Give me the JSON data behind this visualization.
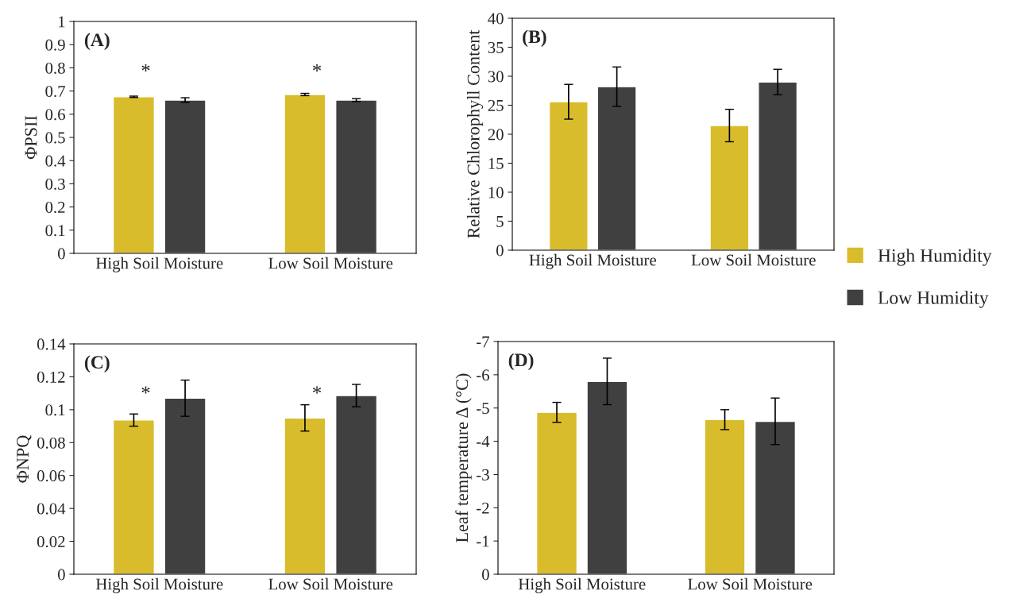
{
  "chart_data": [
    {
      "type": "bar",
      "title": "(A)",
      "ylabel": "ΦPSII",
      "categories": [
        "High Soil Moisture",
        "Low Soil Moisture"
      ],
      "ylim": [
        0,
        1
      ],
      "yticks": [
        0,
        0.1,
        0.2,
        0.3,
        0.4,
        0.5,
        0.6,
        0.7,
        0.8,
        0.9,
        1
      ],
      "grid": false,
      "legend": false,
      "series": [
        {
          "color": "#d9bc2b",
          "values": [
            0.675,
            0.685
          ],
          "errors": [
            0.003,
            0.005
          ]
        },
        {
          "color": "#404040",
          "values": [
            0.661,
            0.661
          ],
          "errors": [
            0.01,
            0.006
          ]
        }
      ],
      "annotations": [
        "*",
        "*"
      ]
    },
    {
      "type": "bar",
      "title": "(B)",
      "ylabel": "Relative Chlorophyll Content",
      "categories": [
        "High Soil Moisture",
        "Low Soil Moisture"
      ],
      "ylim": [
        0,
        40
      ],
      "yticks": [
        0,
        5,
        10,
        15,
        20,
        25,
        30,
        35,
        40
      ],
      "grid": false,
      "legend": "right",
      "series": [
        {
          "name": "High Humidity",
          "color": "#d9bc2b",
          "values": [
            25.6,
            21.5
          ],
          "errors": [
            3,
            2.8
          ]
        },
        {
          "name": "Low Humidity",
          "color": "#404040",
          "values": [
            28.2,
            29
          ],
          "errors": [
            3.4,
            2.2
          ]
        }
      ]
    },
    {
      "type": "bar",
      "title": "(C)",
      "ylabel": "ΦNPQ",
      "categories": [
        "High Soil Moisture",
        "Low Soil Moisture"
      ],
      "ylim": [
        0,
        0.14
      ],
      "yticks": [
        0,
        0.02,
        0.04,
        0.06,
        0.08,
        0.1,
        0.12,
        0.14
      ],
      "grid": false,
      "legend": false,
      "series": [
        {
          "color": "#d9bc2b",
          "values": [
            0.0937,
            0.095
          ],
          "errors": [
            0.0037,
            0.008
          ]
        },
        {
          "color": "#404040",
          "values": [
            0.107,
            0.1086
          ],
          "errors": [
            0.011,
            0.0068
          ]
        }
      ],
      "annotations": [
        "*",
        "*"
      ]
    },
    {
      "type": "bar",
      "title": "(D)",
      "ylabel": "Leaf temperature Δ (°C)",
      "categories": [
        "High Soil Moisture",
        "Low Soil Moisture"
      ],
      "ylim": [
        0,
        -7
      ],
      "yticks": [
        0,
        -1,
        -2,
        -3,
        -4,
        -5,
        -6,
        -7
      ],
      "grid": false,
      "legend": false,
      "series": [
        {
          "color": "#d9bc2b",
          "values": [
            -4.87,
            -4.65
          ],
          "errors": [
            0.3,
            0.3
          ]
        },
        {
          "color": "#404040",
          "values": [
            -5.8,
            -4.6
          ],
          "errors": [
            0.7,
            0.7
          ]
        }
      ]
    }
  ]
}
